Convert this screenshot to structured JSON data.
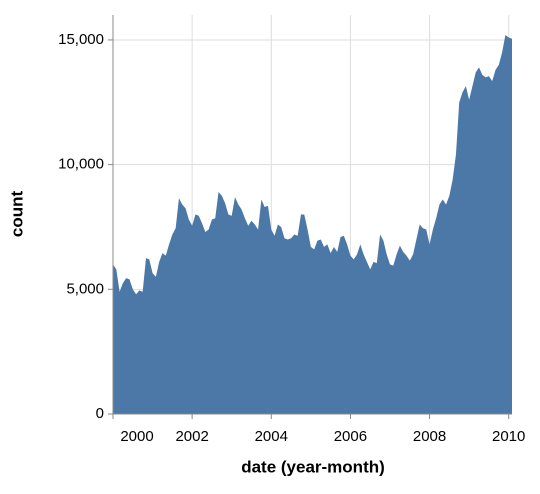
{
  "chart_data": {
    "type": "area",
    "x_label": "date (year-month)",
    "y_label": "count",
    "x": [
      "2000-01",
      "2000-02",
      "2000-03",
      "2000-04",
      "2000-05",
      "2000-06",
      "2000-07",
      "2000-08",
      "2000-09",
      "2000-10",
      "2000-11",
      "2000-12",
      "2001-01",
      "2001-02",
      "2001-03",
      "2001-04",
      "2001-05",
      "2001-06",
      "2001-07",
      "2001-08",
      "2001-09",
      "2001-10",
      "2001-11",
      "2001-12",
      "2002-01",
      "2002-02",
      "2002-03",
      "2002-04",
      "2002-05",
      "2002-06",
      "2002-07",
      "2002-08",
      "2002-09",
      "2002-10",
      "2002-11",
      "2002-12",
      "2003-01",
      "2003-02",
      "2003-03",
      "2003-04",
      "2003-05",
      "2003-06",
      "2003-07",
      "2003-08",
      "2003-09",
      "2003-10",
      "2003-11",
      "2003-12",
      "2004-01",
      "2004-02",
      "2004-03",
      "2004-04",
      "2004-05",
      "2004-06",
      "2004-07",
      "2004-08",
      "2004-09",
      "2004-10",
      "2004-11",
      "2004-12",
      "2005-01",
      "2005-02",
      "2005-03",
      "2005-04",
      "2005-05",
      "2005-06",
      "2005-07",
      "2005-08",
      "2005-09",
      "2005-10",
      "2005-11",
      "2005-12",
      "2006-01",
      "2006-02",
      "2006-03",
      "2006-04",
      "2006-05",
      "2006-06",
      "2006-07",
      "2006-08",
      "2006-09",
      "2006-10",
      "2006-11",
      "2006-12",
      "2007-01",
      "2007-02",
      "2007-03",
      "2007-04",
      "2007-05",
      "2007-06",
      "2007-07",
      "2007-08",
      "2007-09",
      "2007-10",
      "2007-11",
      "2007-12",
      "2008-01",
      "2008-02",
      "2008-03",
      "2008-04",
      "2008-05",
      "2008-06",
      "2008-07",
      "2008-08",
      "2008-09",
      "2008-10",
      "2008-11",
      "2008-12",
      "2009-01",
      "2009-02",
      "2009-03",
      "2009-04",
      "2009-05",
      "2009-06",
      "2009-07",
      "2009-08",
      "2009-09",
      "2009-10",
      "2009-11",
      "2009-12",
      "2010-01",
      "2010-02"
    ],
    "values": [
      6000,
      5800,
      4900,
      5250,
      5450,
      5400,
      5000,
      4800,
      4950,
      4900,
      6250,
      6200,
      5650,
      5500,
      6100,
      6450,
      6350,
      6800,
      7200,
      7450,
      8650,
      8400,
      8250,
      7800,
      7550,
      8000,
      7950,
      7650,
      7300,
      7400,
      7800,
      7850,
      8900,
      8750,
      8450,
      8000,
      7950,
      8700,
      8400,
      8200,
      7850,
      7550,
      7750,
      7600,
      7400,
      8600,
      8300,
      8350,
      7400,
      7150,
      7600,
      7500,
      7050,
      7000,
      7050,
      7200,
      7150,
      8000,
      8000,
      7400,
      6700,
      6600,
      6950,
      7000,
      6700,
      6800,
      6450,
      6700,
      6500,
      7100,
      7150,
      6800,
      6350,
      6200,
      6400,
      6800,
      6400,
      6100,
      5800,
      6100,
      6050,
      7200,
      6950,
      6400,
      6000,
      5950,
      6400,
      6750,
      6500,
      6350,
      6150,
      6400,
      7000,
      7600,
      7450,
      7400,
      6800,
      7400,
      7850,
      8400,
      8600,
      8400,
      8750,
      9400,
      10400,
      12500,
      12900,
      13150,
      12600,
      13150,
      13700,
      13900,
      13600,
      13500,
      13550,
      13350,
      13800,
      14000,
      14500,
      15200,
      15100,
      15050
    ],
    "color": "#4c78a8",
    "xlim": [
      "2000-01",
      "2010-02"
    ],
    "xticks": [
      2000,
      2002,
      2004,
      2006,
      2008,
      2010
    ],
    "ylim": [
      0,
      16000
    ],
    "yticks": [
      0,
      {
        "value": 5000,
        "label": "5,000"
      },
      {
        "value": 10000,
        "label": "10,000"
      },
      {
        "value": 15000,
        "label": "15,000"
      }
    ],
    "grid": true
  }
}
